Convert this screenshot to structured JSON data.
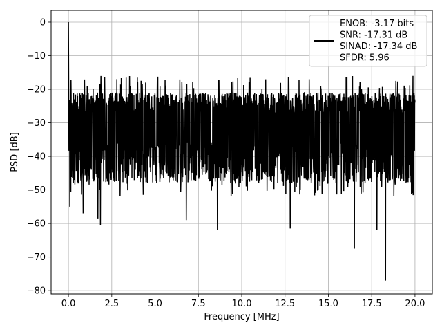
{
  "chart_data": {
    "type": "line",
    "title": "",
    "xlabel": "Frequency [MHz]",
    "ylabel": "PSD [dB]",
    "xlim": [
      -1.0,
      21.0
    ],
    "ylim": [
      -81.0,
      3.5
    ],
    "grid": true,
    "legend_position": "top-right",
    "x_ticks": [
      {
        "value": 0.0,
        "label": "0.0"
      },
      {
        "value": 2.5,
        "label": "2.5"
      },
      {
        "value": 5.0,
        "label": "5.0"
      },
      {
        "value": 7.5,
        "label": "7.5"
      },
      {
        "value": 10.0,
        "label": "10.0"
      },
      {
        "value": 12.5,
        "label": "12.5"
      },
      {
        "value": 15.0,
        "label": "15.0"
      },
      {
        "value": 17.5,
        "label": "17.5"
      },
      {
        "value": 20.0,
        "label": "20.0"
      }
    ],
    "y_ticks": [
      {
        "value": 0,
        "label": "0"
      },
      {
        "value": -10,
        "label": "−10"
      },
      {
        "value": -20,
        "label": "−20"
      },
      {
        "value": -30,
        "label": "−30"
      },
      {
        "value": -40,
        "label": "−40"
      },
      {
        "value": -50,
        "label": "−50"
      },
      {
        "value": -60,
        "label": "−60"
      },
      {
        "value": -70,
        "label": "−70"
      },
      {
        "value": -80,
        "label": "−80"
      }
    ],
    "series": [
      {
        "color": "#000000",
        "x_range": [
          0.0,
          20.0
        ],
        "num_points": 2048,
        "peak": {
          "x": 0.0,
          "y": 0.0
        },
        "noise_band": {
          "typical_top": -21,
          "typical_bottom": -42,
          "max": -16,
          "min_typical": -52
        },
        "notable_dips": [
          {
            "x": 0.08,
            "y": -55
          },
          {
            "x": 0.85,
            "y": -57
          },
          {
            "x": 1.7,
            "y": -58.5
          },
          {
            "x": 1.85,
            "y": -60.5
          },
          {
            "x": 6.8,
            "y": -59
          },
          {
            "x": 8.6,
            "y": -62
          },
          {
            "x": 12.8,
            "y": -61.5
          },
          {
            "x": 16.5,
            "y": -67.5
          },
          {
            "x": 17.8,
            "y": -62
          },
          {
            "x": 18.3,
            "y": -77
          }
        ]
      }
    ],
    "legend": {
      "lines": [
        "ENOB: -3.17 bits",
        "SNR: -17.31 dB",
        "SINAD: -17.34 dB",
        "SFDR: 5.96"
      ]
    }
  }
}
